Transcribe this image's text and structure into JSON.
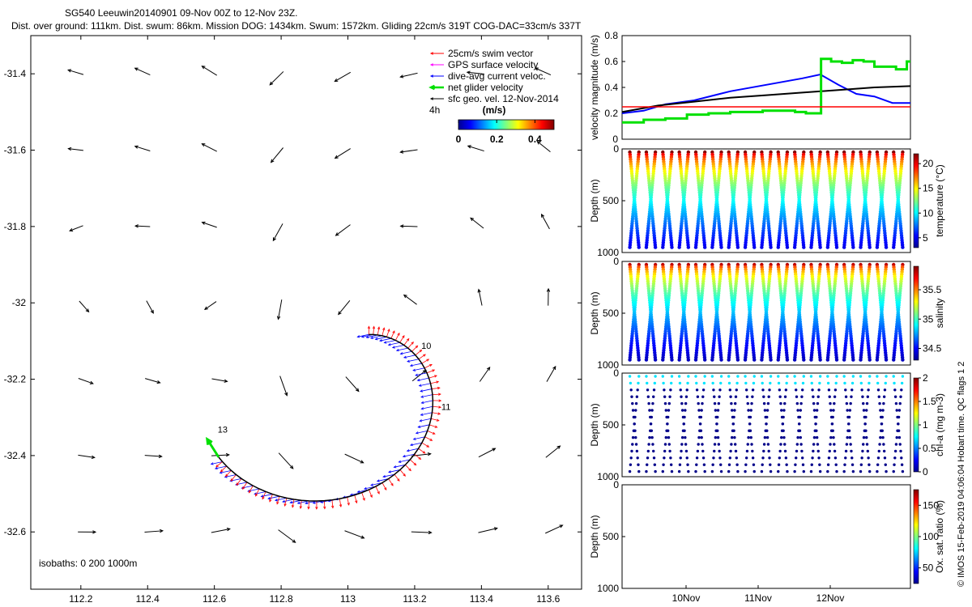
{
  "header": {
    "title_line1": "SG540 Leeuwin20140901 09-Nov 00Z to 12-Nov 23Z.",
    "title_line2": "Dist. over ground: 111km. Dist. swum: 86km. Mission DOG: 1434km. Swum: 1572km. Gliding 22cm/s 319T COG-DAC=33cm/s 337T"
  },
  "side_note": "© IMOS 15-Feb-2019 04:06:04 Hobart time. QC flags 1  2",
  "colors": {
    "swim": "#ff0000",
    "gps": "#ff00ff",
    "dac": "#0000ff",
    "net": "#00e000",
    "sfc": "#000000",
    "speed_limit": "#ff0000"
  },
  "map": {
    "xticks": [
      "112.2",
      "112.4",
      "112.6",
      "112.8",
      "113",
      "113.2",
      "113.4",
      "113.6"
    ],
    "yticks": [
      "-31.4",
      "-31.6",
      "-31.8",
      "-32",
      "-32.2",
      "-32.4",
      "-32.6"
    ],
    "xlim": [
      112.05,
      113.7
    ],
    "ylim": [
      -32.75,
      -31.3
    ],
    "legend": [
      {
        "label": "25cm/s swim vector",
        "color": "#ff0000"
      },
      {
        "label": "GPS surface velocity",
        "color": "#ff00ff"
      },
      {
        "label": "dive-avg current veloc.",
        "color": "#0000ff"
      },
      {
        "label": "net glider velocity",
        "color": "#00e000"
      },
      {
        "label": "sfc geo. vel. 12-Nov-2014",
        "color": "#000000"
      }
    ],
    "legend_extra": "4h",
    "colorbar": {
      "title": "(m/s)",
      "ticks": [
        "0",
        "0.2",
        "0.4"
      ]
    },
    "isobaths_label": "isobaths: 0   200  1000m",
    "day_labels": [
      {
        "text": "10",
        "lon": 113.22,
        "lat": -32.12
      },
      {
        "text": "11",
        "lon": 113.28,
        "lat": -32.28
      },
      {
        "text": "13",
        "lon": 112.61,
        "lat": -32.34
      }
    ]
  },
  "chart_data": [
    {
      "type": "line",
      "panel": "velocity",
      "ylabel": "velocity magnitude (m/s)",
      "ylim": [
        0,
        0.8
      ],
      "yticks": [
        "0",
        "0.2",
        "0.4",
        "0.6",
        "0.8"
      ],
      "xlim": [
        0,
        4
      ],
      "series": [
        {
          "key": "dac",
          "x": [
            0,
            0.3,
            0.6,
            1.0,
            1.5,
            2.0,
            2.5,
            2.75,
            3.0,
            3.25,
            3.5,
            3.75,
            4.0
          ],
          "values": [
            0.2,
            0.22,
            0.27,
            0.3,
            0.37,
            0.42,
            0.47,
            0.5,
            0.42,
            0.35,
            0.33,
            0.28,
            0.28
          ]
        },
        {
          "key": "sfc",
          "x": [
            0,
            0.5,
            1.0,
            1.5,
            2.0,
            2.5,
            3.0,
            3.5,
            4.0
          ],
          "values": [
            0.21,
            0.26,
            0.29,
            0.32,
            0.34,
            0.36,
            0.38,
            0.4,
            0.41
          ]
        },
        {
          "key": "net",
          "step": true,
          "x": [
            0,
            0.15,
            0.3,
            0.45,
            0.6,
            0.75,
            0.9,
            1.05,
            1.2,
            1.35,
            1.5,
            1.65,
            1.8,
            1.95,
            2.1,
            2.25,
            2.4,
            2.55,
            2.7,
            2.76,
            2.9,
            3.05,
            3.2,
            3.35,
            3.5,
            3.65,
            3.8,
            3.95,
            4.0
          ],
          "values": [
            0.13,
            0.13,
            0.15,
            0.15,
            0.16,
            0.16,
            0.19,
            0.19,
            0.2,
            0.2,
            0.21,
            0.21,
            0.21,
            0.22,
            0.22,
            0.22,
            0.21,
            0.2,
            0.2,
            0.62,
            0.6,
            0.59,
            0.61,
            0.6,
            0.56,
            0.56,
            0.54,
            0.6,
            0.6
          ]
        },
        {
          "key": "speed_limit",
          "x": [
            0,
            4
          ],
          "values": [
            0.25,
            0.25
          ]
        }
      ]
    },
    {
      "type": "scatter",
      "panel": "temperature",
      "ylabel": "Depth (m)",
      "yticks": [
        "0",
        "500",
        "1000"
      ],
      "ylim": [
        0,
        1000
      ],
      "colorbar_label": "temperature (°C)",
      "colorbar_ticks": [
        "5",
        "10",
        "15",
        "20"
      ],
      "clim": [
        3,
        22
      ],
      "profiles": 17,
      "max_depth": 1000
    },
    {
      "type": "scatter",
      "panel": "salinity",
      "ylabel": "Depth (m)",
      "yticks": [
        "0",
        "500",
        "1000"
      ],
      "ylim": [
        0,
        1000
      ],
      "colorbar_label": "salinity",
      "colorbar_ticks": [
        "34.5",
        "35",
        "35.5"
      ],
      "clim": [
        34.3,
        35.9
      ],
      "profiles": 17,
      "max_depth": 1000
    },
    {
      "type": "scatter",
      "panel": "chla",
      "ylabel": "Depth (m)",
      "yticks": [
        "0",
        "500",
        "1000"
      ],
      "ylim": [
        0,
        1000
      ],
      "colorbar_label": "chl-a (mg m-3)",
      "colorbar_ticks": [
        "0",
        "0.5",
        "1",
        "1.5",
        "2"
      ],
      "clim": [
        0,
        2
      ],
      "profiles": 17,
      "max_depth": 1000
    },
    {
      "type": "scatter",
      "panel": "oxygen",
      "ylabel": "Depth (m)",
      "yticks": [
        "0",
        "500",
        "1000"
      ],
      "ylim": [
        0,
        1000
      ],
      "colorbar_label": "Ox. sat. ratio (%)",
      "colorbar_ticks": [
        "50",
        "100",
        "150"
      ],
      "clim": [
        25,
        175
      ],
      "profiles": 0,
      "max_depth": 1000,
      "xticks": [
        "10Nov",
        "11Nov",
        "12Nov"
      ]
    }
  ]
}
